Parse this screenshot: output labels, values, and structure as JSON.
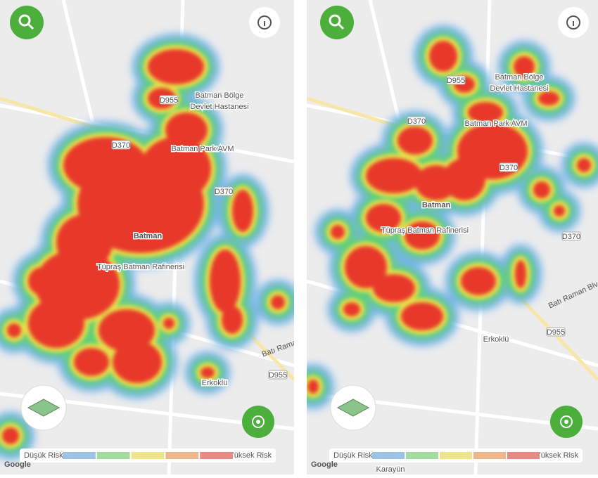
{
  "panels": [
    {
      "hospital": [
        "Batman Bölge",
        "Devlet Hastanesi"
      ],
      "mall": "Batman Park AVM",
      "city": "Batman",
      "refinery": "Tüpraş Batman Rafinerisi",
      "village": "Erkoklü",
      "roads": [
        "D955",
        "D370",
        "D370",
        "D955"
      ],
      "boulevard": "Batı Raman",
      "legend": {
        "low": "Düşük Risk",
        "high": "Yüksek Risk"
      },
      "attribution": "Google"
    },
    {
      "hospital": [
        "Batman Bölge",
        "Devlet Hastanesi"
      ],
      "mall": "Batman Park AVM",
      "city": "Batman",
      "refinery": "Tüpraş Batman Rafinerisi",
      "village": "Erkoklü",
      "roads": [
        "D955",
        "D370",
        "D370",
        "D370",
        "D955"
      ],
      "boulevard": "Batı Raman Blv",
      "district": "Karayün",
      "legend": {
        "low": "Düşük Risk",
        "high": "Yüksek Risk"
      },
      "attribution": "Google"
    }
  ]
}
